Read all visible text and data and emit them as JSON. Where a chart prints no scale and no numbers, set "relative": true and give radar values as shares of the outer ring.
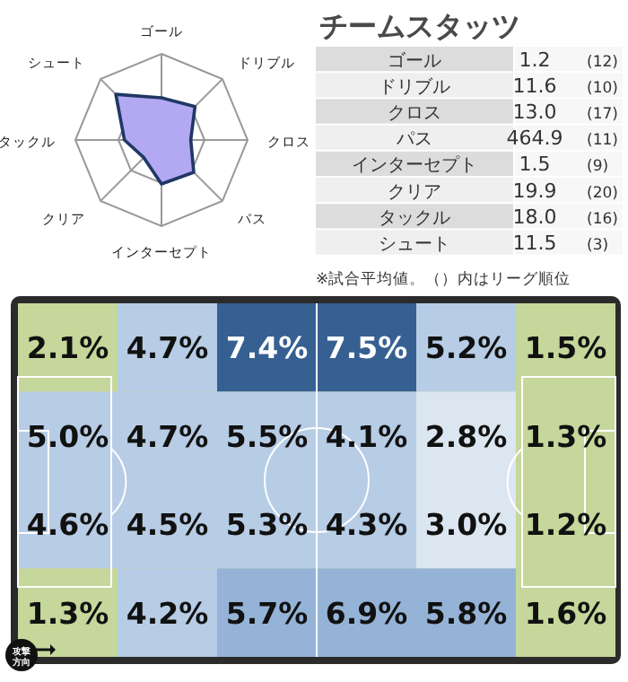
{
  "chart_data": [
    {
      "type": "radar",
      "relative": true,
      "categories": [
        "ゴール",
        "ドリブル",
        "クロス",
        "パス",
        "インターセプト",
        "クリア",
        "タックル",
        "シュート"
      ],
      "series": [
        {
          "color": "#b3a8f2",
          "values": [
            0.49,
            0.55,
            0.34,
            0.53,
            0.51,
            0.29,
            0.43,
            0.75
          ]
        }
      ]
    },
    {
      "type": "other",
      "title": "チームスタッツ",
      "categories": [
        "ゴール",
        "ドリブル",
        "クロス",
        "パス",
        "インターセプト",
        "クリア",
        "タックル",
        "シュート"
      ],
      "series": [
        {
          "values": [
            1.2,
            11.6,
            13.0,
            464.9,
            1.5,
            19.9,
            18.0,
            11.5
          ],
          "value_labels": [
            "1.2",
            "11.6",
            "13.0",
            "464.9",
            "1.5",
            "19.9",
            "18.0",
            "11.5"
          ]
        },
        {
          "values": [
            12,
            10,
            17,
            11,
            9,
            20,
            16,
            3
          ],
          "value_labels": [
            "(12)",
            "(10)",
            "(17)",
            "(11)",
            "(9)",
            "(20)",
            "(16)",
            "(3)"
          ]
        }
      ],
      "annotations": [
        "※試合平均値。（）内はリーグ順位"
      ]
    },
    {
      "type": "heatmap",
      "categories": [
        null,
        null,
        null,
        null,
        null,
        null
      ],
      "y_categories": [
        null,
        null,
        null,
        null
      ],
      "cells": [
        [
          2.1,
          4.7,
          7.4,
          7.5,
          5.2,
          1.5
        ],
        [
          5.0,
          4.7,
          5.5,
          4.1,
          2.8,
          1.3
        ],
        [
          4.6,
          4.5,
          5.3,
          4.3,
          3.0,
          1.2
        ],
        [
          1.3,
          4.2,
          5.7,
          6.9,
          5.8,
          1.6
        ]
      ],
      "cell_labels": [
        [
          "2.1%",
          "4.7%",
          "7.4%",
          "7.5%",
          "5.2%",
          "1.5%"
        ],
        [
          "5.0%",
          "4.7%",
          "5.5%",
          "4.1%",
          "2.8%",
          "1.3%"
        ],
        [
          "4.6%",
          "4.5%",
          "5.3%",
          "4.3%",
          "3.0%",
          "1.2%"
        ],
        [
          "1.3%",
          "4.2%",
          "5.7%",
          "6.9%",
          "5.8%",
          "1.6%"
        ]
      ],
      "annotations": [
        "攻撃方向"
      ]
    }
  ]
}
